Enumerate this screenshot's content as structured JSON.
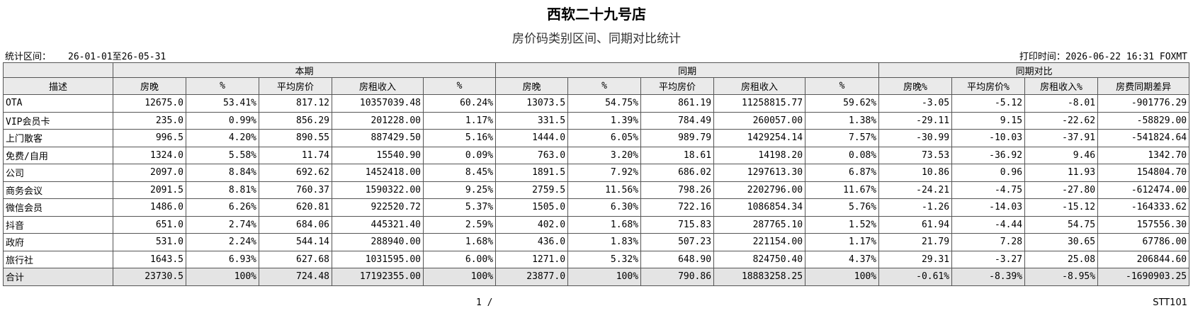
{
  "header": {
    "title": "西软二十九号店",
    "subtitle": "房价码类别区间、同期对比统计",
    "period_label": "统计区间：",
    "period": "26-01-01至26-05-31",
    "print_time": "打印时间：2026-06-22 16:31 FOXMT"
  },
  "table": {
    "group_headers": [
      "本期",
      "同期",
      "同期对比"
    ],
    "columns": [
      "描述",
      "房晚",
      "%",
      "平均房价",
      "房租收入",
      "%",
      "房晚",
      "%",
      "平均房价",
      "房租收入",
      "%",
      "房晚%",
      "平均房价%",
      "房租收入%",
      "房费同期差异"
    ],
    "rows": [
      [
        "OTA",
        "12675.0",
        "53.41%",
        "817.12",
        "10357039.48",
        "60.24%",
        "13073.5",
        "54.75%",
        "861.19",
        "11258815.77",
        "59.62%",
        "-3.05",
        "-5.12",
        "-8.01",
        "-901776.29"
      ],
      [
        "VIP会员卡",
        "235.0",
        "0.99%",
        "856.29",
        "201228.00",
        "1.17%",
        "331.5",
        "1.39%",
        "784.49",
        "260057.00",
        "1.38%",
        "-29.11",
        "9.15",
        "-22.62",
        "-58829.00"
      ],
      [
        "上门散客",
        "996.5",
        "4.20%",
        "890.55",
        "887429.50",
        "5.16%",
        "1444.0",
        "6.05%",
        "989.79",
        "1429254.14",
        "7.57%",
        "-30.99",
        "-10.03",
        "-37.91",
        "-541824.64"
      ],
      [
        "免费/自用",
        "1324.0",
        "5.58%",
        "11.74",
        "15540.90",
        "0.09%",
        "763.0",
        "3.20%",
        "18.61",
        "14198.20",
        "0.08%",
        "73.53",
        "-36.92",
        "9.46",
        "1342.70"
      ],
      [
        "公司",
        "2097.0",
        "8.84%",
        "692.62",
        "1452418.00",
        "8.45%",
        "1891.5",
        "7.92%",
        "686.02",
        "1297613.30",
        "6.87%",
        "10.86",
        "0.96",
        "11.93",
        "154804.70"
      ],
      [
        "商务会议",
        "2091.5",
        "8.81%",
        "760.37",
        "1590322.00",
        "9.25%",
        "2759.5",
        "11.56%",
        "798.26",
        "2202796.00",
        "11.67%",
        "-24.21",
        "-4.75",
        "-27.80",
        "-612474.00"
      ],
      [
        "微信会员",
        "1486.0",
        "6.26%",
        "620.81",
        "922520.72",
        "5.37%",
        "1505.0",
        "6.30%",
        "722.16",
        "1086854.34",
        "5.76%",
        "-1.26",
        "-14.03",
        "-15.12",
        "-164333.62"
      ],
      [
        "抖音",
        "651.0",
        "2.74%",
        "684.06",
        "445321.40",
        "2.59%",
        "402.0",
        "1.68%",
        "715.83",
        "287765.10",
        "1.52%",
        "61.94",
        "-4.44",
        "54.75",
        "157556.30"
      ],
      [
        "政府",
        "531.0",
        "2.24%",
        "544.14",
        "288940.00",
        "1.68%",
        "436.0",
        "1.83%",
        "507.23",
        "221154.00",
        "1.17%",
        "21.79",
        "7.28",
        "30.65",
        "67786.00"
      ],
      [
        "旅行社",
        "1643.5",
        "6.93%",
        "627.68",
        "1031595.00",
        "6.00%",
        "1271.0",
        "5.32%",
        "648.90",
        "824750.40",
        "4.37%",
        "29.31",
        "-3.27",
        "25.08",
        "206844.60"
      ]
    ],
    "total": [
      "合计",
      "23730.5",
      "100%",
      "724.48",
      "17192355.00",
      "100%",
      "23877.0",
      "100%",
      "790.86",
      "18883258.25",
      "100%",
      "-0.61%",
      "-8.39%",
      "-8.95%",
      "-1690903.25"
    ]
  },
  "footer": {
    "page": "1 /",
    "code": "STT101"
  }
}
